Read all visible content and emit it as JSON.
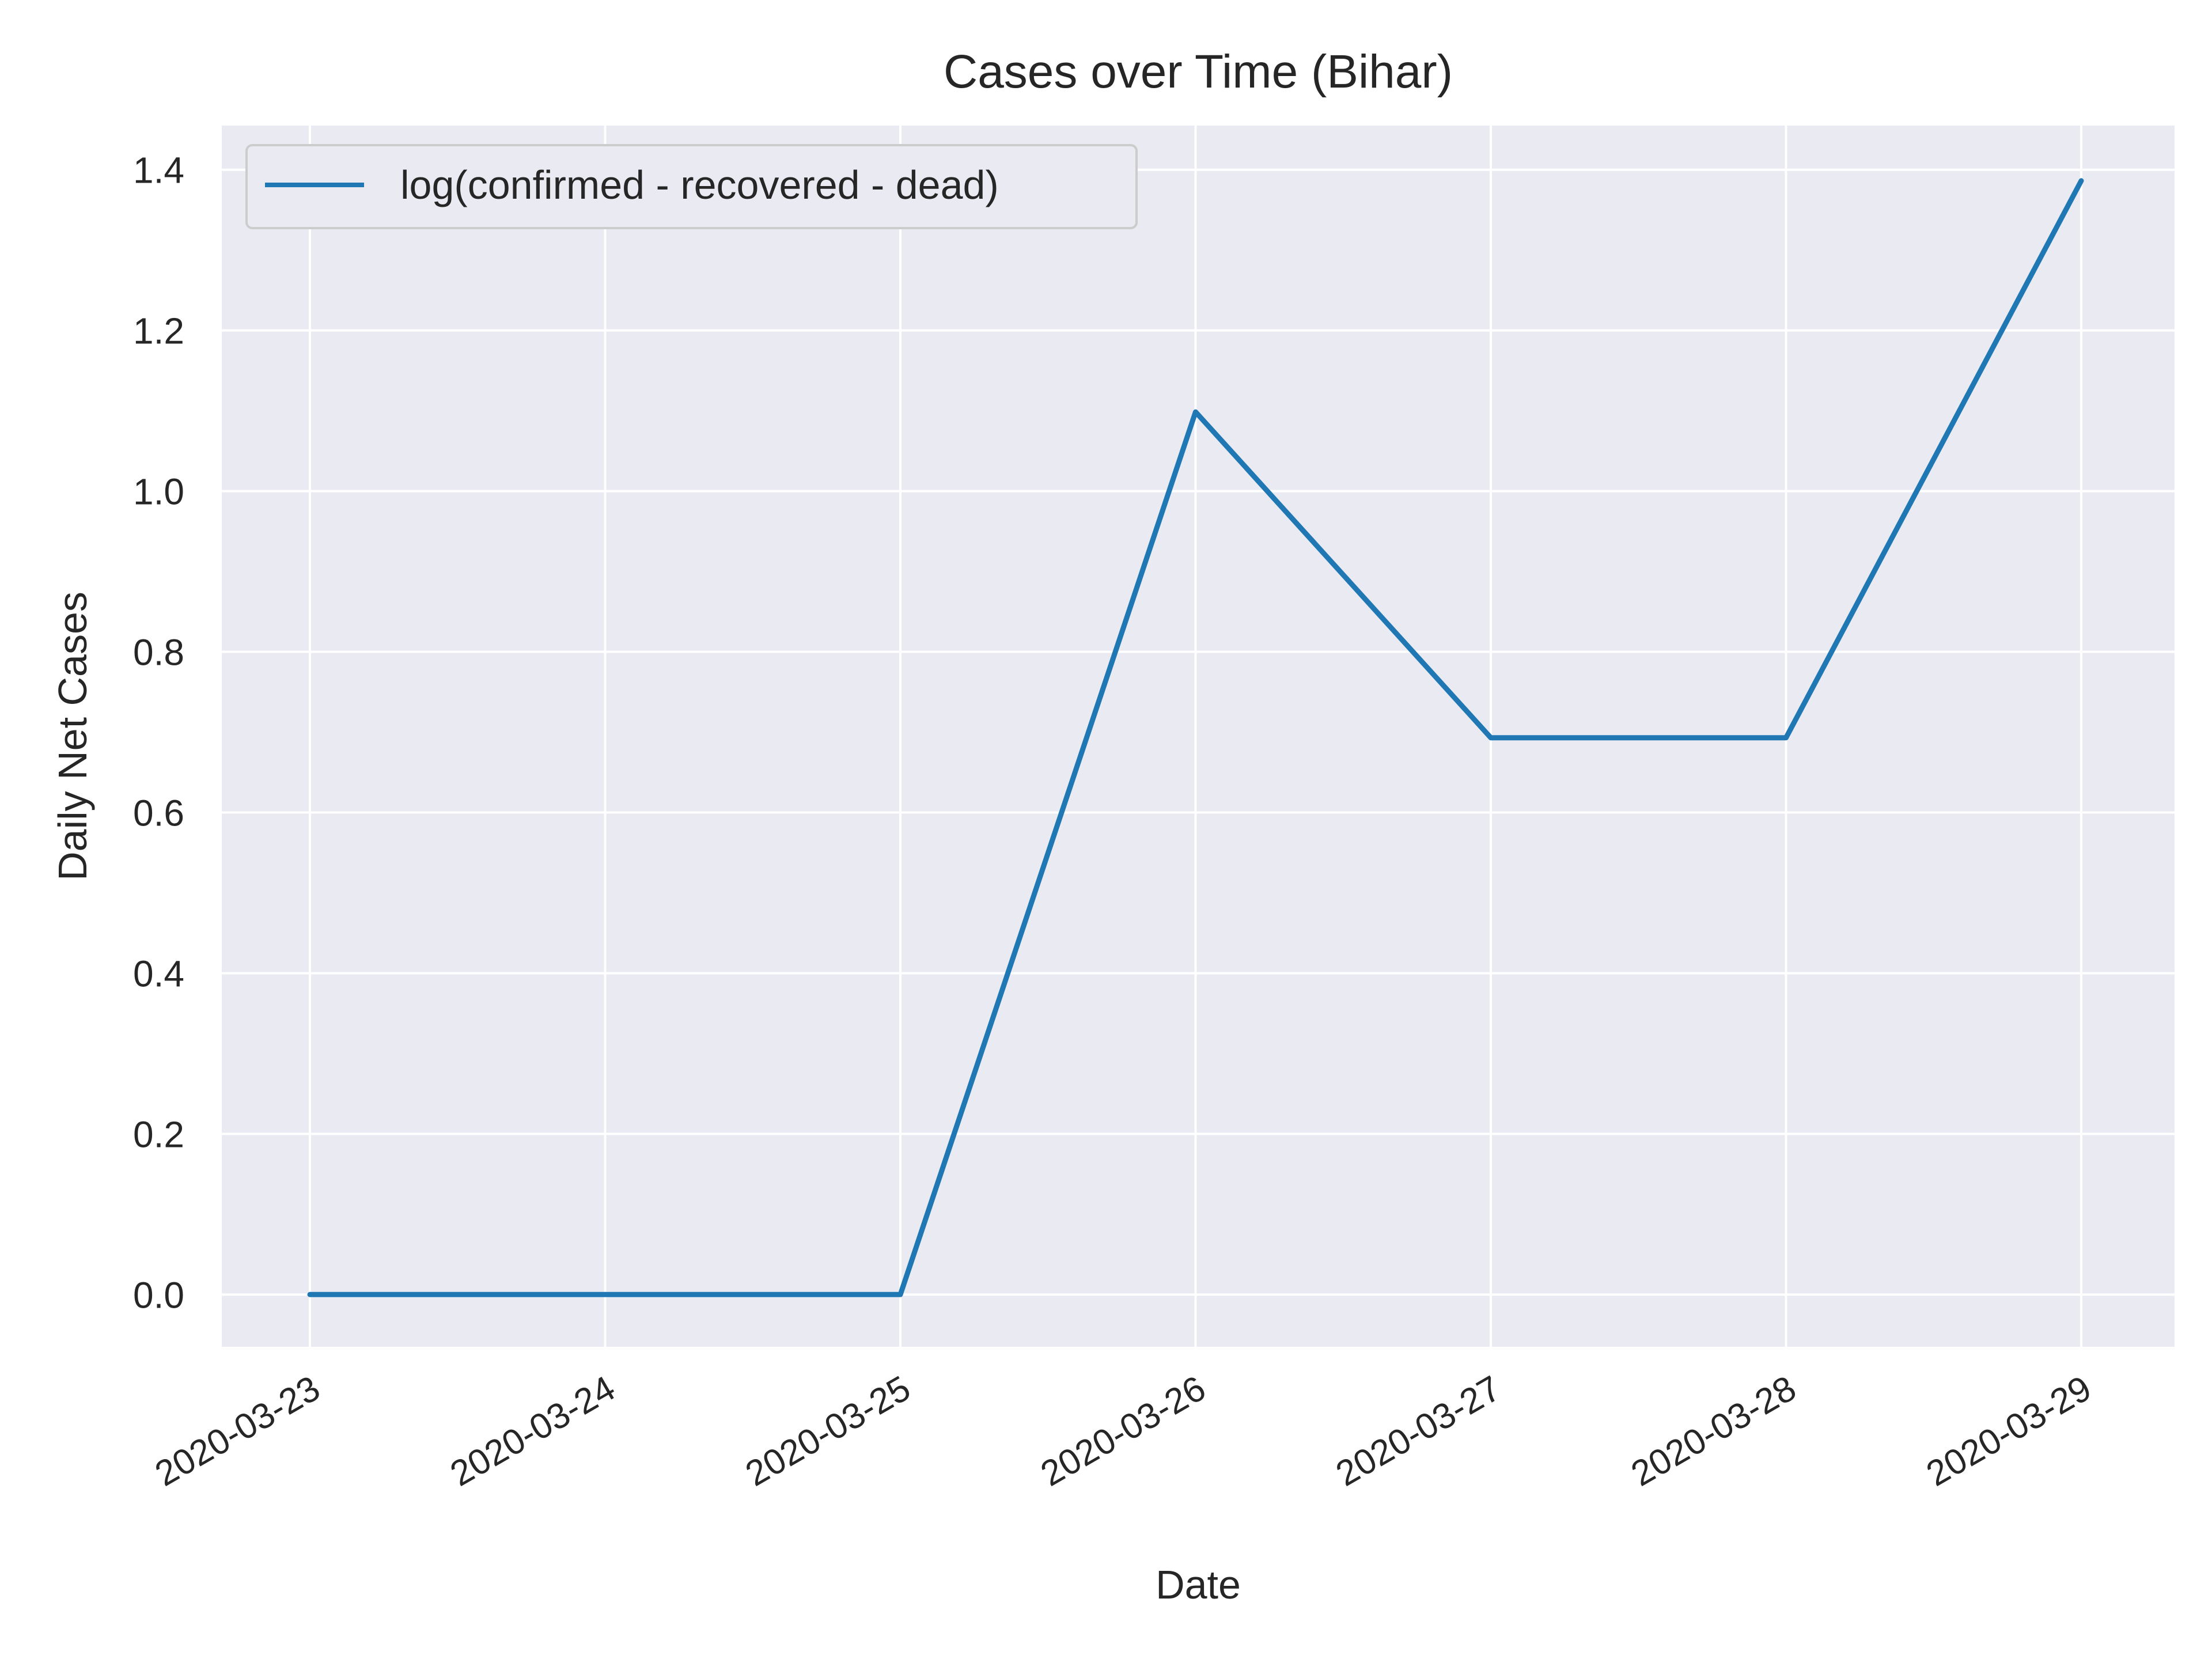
{
  "chart_data": {
    "type": "line",
    "title": "Cases over Time (Bihar)",
    "xlabel": "Date",
    "ylabel": "Daily Net Cases",
    "x": [
      "2020-03-23",
      "2020-03-24",
      "2020-03-25",
      "2020-03-26",
      "2020-03-27",
      "2020-03-28",
      "2020-03-29"
    ],
    "yticks": [
      "0.0",
      "0.2",
      "0.4",
      "0.6",
      "0.8",
      "1.0",
      "1.2",
      "1.4"
    ],
    "ylim": [
      -0.065,
      1.455
    ],
    "grid": true,
    "legend_position": "top-left",
    "series": [
      {
        "name": "log(confirmed - recovered - dead)",
        "color": "#1f77b4",
        "values": [
          0.0,
          0.0,
          0.0,
          1.0986,
          0.6931,
          0.6931,
          1.3863
        ]
      }
    ],
    "colors": {
      "plot_background": "#eaeaf2",
      "grid": "#ffffff",
      "text": "#262626"
    }
  }
}
